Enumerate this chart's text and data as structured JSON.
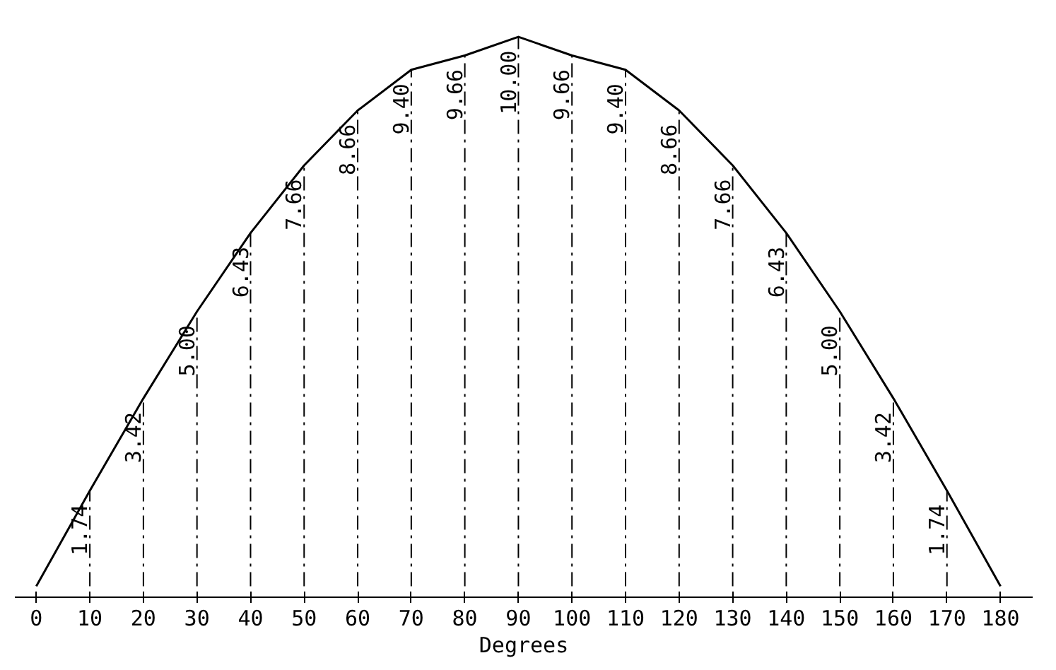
{
  "chart_data": {
    "type": "line",
    "xlabel": "Degrees",
    "x": [
      0,
      10,
      20,
      30,
      40,
      50,
      60,
      70,
      80,
      90,
      100,
      110,
      120,
      130,
      140,
      150,
      160,
      170,
      180
    ],
    "xlim": [
      -4,
      186
    ],
    "xticks": [
      0,
      10,
      20,
      30,
      40,
      50,
      60,
      70,
      80,
      90,
      100,
      110,
      120,
      130,
      140,
      150,
      160,
      170,
      180
    ],
    "series": [
      {
        "color": "#000000",
        "values": [
          0,
          1.74,
          3.42,
          5.0,
          6.43,
          7.66,
          8.66,
          9.4,
          9.66,
          10.0,
          9.66,
          9.4,
          8.66,
          7.66,
          6.43,
          5.0,
          3.42,
          1.74,
          0
        ],
        "value_labels": [
          null,
          "1.74",
          "3.42",
          "5.00",
          "6.43",
          "7.66",
          "8.66",
          "9.40",
          "9.66",
          "10.00",
          "9.66",
          "9.40",
          "8.66",
          "7.66",
          "6.43",
          "5.00",
          "3.42",
          "1.74",
          null
        ]
      }
    ],
    "grid": "x",
    "line_style": "solid"
  }
}
